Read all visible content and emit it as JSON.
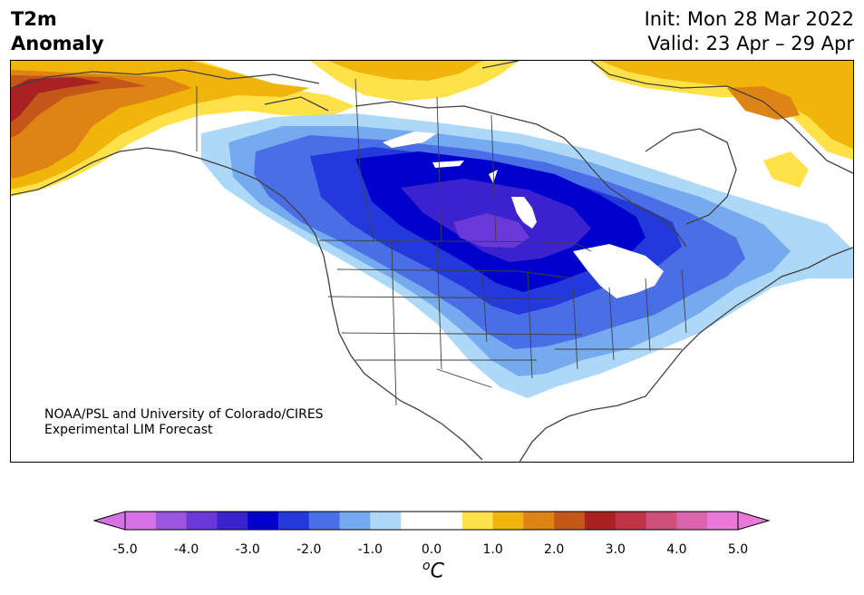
{
  "title": {
    "line1": "T2m",
    "line2": "Anomaly"
  },
  "header": {
    "init": "Init: Mon 28 Mar 2022",
    "valid": "Valid: 23 Apr – 29 Apr"
  },
  "credit": {
    "line1": "NOAA/PSL and University of Colorado/CIRES",
    "line2": "Experimental LIM Forecast"
  },
  "colorbar": {
    "ticks": [
      "-5.0",
      "-4.0",
      "-3.0",
      "-2.0",
      "-1.0",
      "0.0",
      "1.0",
      "2.0",
      "3.0",
      "4.0",
      "5.0"
    ],
    "units_base": "C",
    "units_sup": "o",
    "colors": [
      "#d672e8",
      "#9b55df",
      "#6a38d8",
      "#3b22cf",
      "#0000cc",
      "#2339dc",
      "#4a6ee6",
      "#75aaef",
      "#aed8f8",
      "#ffffff",
      "#ffffff",
      "#ffe24a",
      "#f1b40a",
      "#dd8414",
      "#c4561a",
      "#a82222",
      "#bd3446",
      "#cd4f7a",
      "#db65ad",
      "#e978d8"
    ],
    "under_color": "#d672e8",
    "over_color": "#e978d8"
  },
  "anomaly_colors": {
    "blue_1": "#aed8f8",
    "blue_2": "#75aaef",
    "blue_3": "#4a6ee6",
    "blue_4": "#2339dc",
    "blue_5": "#0000cc",
    "blue_6": "#3b22cf",
    "blue_7": "#6a38d8",
    "warm_1": "#ffe24a",
    "warm_2": "#f1b40a",
    "warm_3": "#dd8414",
    "warm_4": "#c4561a",
    "warm_5": "#a82222"
  }
}
